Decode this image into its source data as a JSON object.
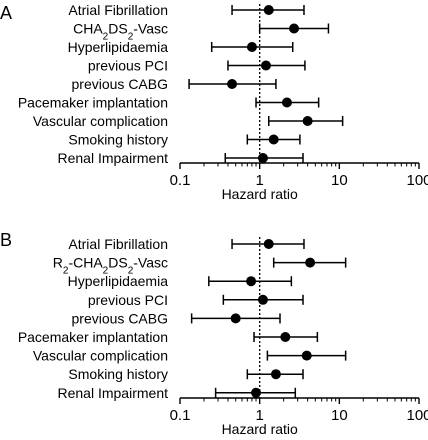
{
  "chart_data": [
    {
      "type": "scatter",
      "panel_label": "A",
      "xlabel": "Hazard ratio",
      "xscale": "log",
      "xlim": [
        0.1,
        100
      ],
      "x_ticks": [
        "0.1",
        "1",
        "10",
        "100"
      ],
      "reference_line": 1,
      "reference_line_style": "dotted",
      "labels": [
        {
          "text": "Atrial Fibrillation"
        },
        {
          "text": "CHA",
          "sub1": "2",
          "mid": "DS",
          "sub2": "2",
          "rest": "-Vasc"
        },
        {
          "text": "Hyperlipidaemia"
        },
        {
          "text": "previous PCI"
        },
        {
          "text": "previous CABG"
        },
        {
          "text": "Pacemaker implantation"
        },
        {
          "text": "Vascular complication"
        },
        {
          "text": "Smoking history"
        },
        {
          "text": "Renal Impairment"
        }
      ],
      "points": [
        {
          "hr": 1.3,
          "lo": 0.45,
          "hi": 3.6
        },
        {
          "hr": 2.7,
          "lo": 1.0,
          "hi": 7.3
        },
        {
          "hr": 0.8,
          "lo": 0.25,
          "hi": 2.6
        },
        {
          "hr": 1.2,
          "lo": 0.4,
          "hi": 3.7
        },
        {
          "hr": 0.45,
          "lo": 0.13,
          "hi": 1.6
        },
        {
          "hr": 2.2,
          "lo": 0.9,
          "hi": 5.5
        },
        {
          "hr": 4.0,
          "lo": 1.3,
          "hi": 11.0
        },
        {
          "hr": 1.5,
          "lo": 0.7,
          "hi": 3.2
        },
        {
          "hr": 1.1,
          "lo": 0.37,
          "hi": 3.5
        }
      ]
    },
    {
      "type": "scatter",
      "panel_label": "B",
      "xlabel": "Hazard ratio",
      "xscale": "log",
      "xlim": [
        0.1,
        100
      ],
      "x_ticks": [
        "0.1",
        "1",
        "10",
        "100"
      ],
      "reference_line": 1,
      "reference_line_style": "dotted",
      "labels": [
        {
          "text": "Atrial Fibrillation"
        },
        {
          "text": "R",
          "sub1": "2",
          "mid": "-CHA",
          "sub2": "2",
          "mid2": "DS",
          "sub3": "2",
          "rest": "-Vasc"
        },
        {
          "text": "Hyperlipidaemia"
        },
        {
          "text": "previous PCI"
        },
        {
          "text": "previous CABG"
        },
        {
          "text": "Pacemaker implantation"
        },
        {
          "text": "Vascular complication"
        },
        {
          "text": "Smoking history"
        },
        {
          "text": "Renal Impairment"
        }
      ],
      "points": [
        {
          "hr": 1.3,
          "lo": 0.45,
          "hi": 3.6
        },
        {
          "hr": 4.3,
          "lo": 1.5,
          "hi": 12.0
        },
        {
          "hr": 0.78,
          "lo": 0.23,
          "hi": 2.5
        },
        {
          "hr": 1.1,
          "lo": 0.35,
          "hi": 3.5
        },
        {
          "hr": 0.5,
          "lo": 0.14,
          "hi": 1.8
        },
        {
          "hr": 2.1,
          "lo": 0.85,
          "hi": 5.3
        },
        {
          "hr": 3.9,
          "lo": 1.25,
          "hi": 12.0
        },
        {
          "hr": 1.6,
          "lo": 0.7,
          "hi": 3.5
        },
        {
          "hr": 0.9,
          "lo": 0.28,
          "hi": 2.8
        }
      ]
    }
  ]
}
